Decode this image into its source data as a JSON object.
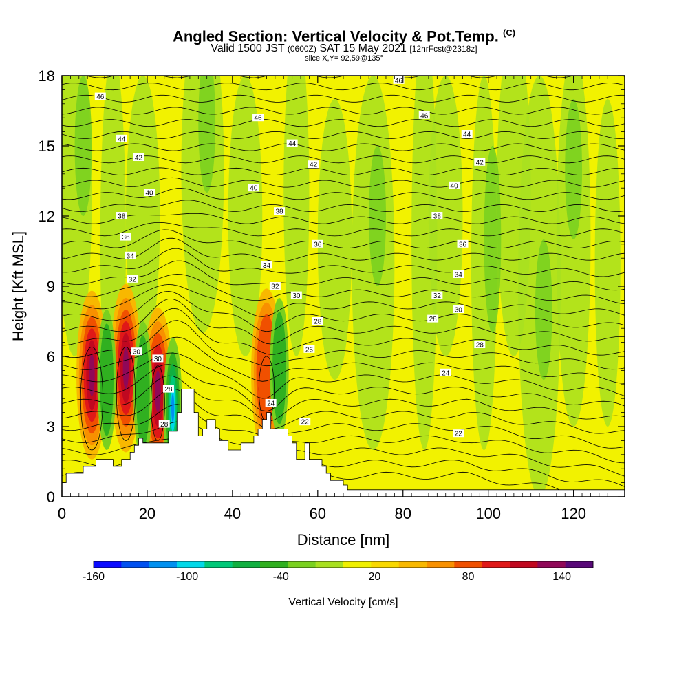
{
  "header": {
    "title": "Angled Section: Vertical Velocity & Pot.Temp.",
    "title_unit": "(C)",
    "subtitle_prefix": "Valid 1500 JST",
    "subtitle_utc": "(0600Z)",
    "subtitle_date": "SAT 15 May 2021",
    "subtitle_fcst": "[12hrFcst@2318z]",
    "slice": "slice X,Y= 92,59@135°"
  },
  "chart_data": {
    "type": "heatmap",
    "xlabel": "Distance [nm]",
    "ylabel": "Height [Kft MSL]",
    "xlim": [
      0,
      132
    ],
    "ylim": [
      0,
      18
    ],
    "x_ticks": [
      "0",
      "20",
      "40",
      "60",
      "80",
      "100",
      "120"
    ],
    "x_tick_values": [
      0,
      20,
      40,
      60,
      80,
      100,
      120
    ],
    "y_ticks": [
      "0",
      "3",
      "6",
      "9",
      "12",
      "15",
      "18"
    ],
    "y_tick_values": [
      0,
      3,
      6,
      9,
      12,
      15,
      18
    ],
    "colorbar": {
      "label": "Vertical Velocity [cm/s]",
      "range": [
        -160,
        160
      ],
      "tick_labels": [
        "-160",
        "-100",
        "-40",
        "20",
        "80",
        "140"
      ],
      "tick_values": [
        -160,
        -100,
        -40,
        20,
        80,
        140
      ],
      "colors": [
        "#0a0aff",
        "#0050f0",
        "#0090f0",
        "#00d8e8",
        "#00c878",
        "#10b040",
        "#30b020",
        "#7ad020",
        "#a8e020",
        "#f0f000",
        "#f8d800",
        "#f8b800",
        "#f89000",
        "#f05000",
        "#e01818",
        "#c00820",
        "#900858",
        "#580878"
      ]
    },
    "background_field": {
      "value": 20,
      "color": "#f2f200"
    },
    "updraft_cores": [
      {
        "x": 7,
        "y": 5.2,
        "max": 140
      },
      {
        "x": 15,
        "y": 5.5,
        "max": 140
      },
      {
        "x": 22.5,
        "y": 4.5,
        "max": 140
      },
      {
        "x": 48,
        "y": 5.3,
        "max": 80
      }
    ],
    "downdraft_cores": [
      {
        "x": 26,
        "y": 3.8,
        "min": -120
      },
      {
        "x": 10.5,
        "y": 5.0,
        "min": -40
      },
      {
        "x": 19,
        "y": 4.5,
        "min": -40
      },
      {
        "x": 51,
        "y": 5.5,
        "min": -40
      }
    ],
    "terrain": {
      "x": [
        0,
        0,
        1,
        1,
        5,
        5,
        8,
        8,
        12,
        12,
        14,
        14,
        16,
        16,
        17,
        17,
        18,
        18,
        19,
        19,
        25,
        25,
        27,
        27,
        28,
        28,
        31,
        31,
        32,
        32,
        33,
        33,
        34,
        34,
        36,
        36,
        37,
        37,
        39,
        39,
        42,
        42,
        45,
        45,
        46,
        46,
        47,
        47,
        48,
        48,
        49,
        49,
        53,
        53,
        54,
        54,
        55,
        55,
        57,
        57,
        58,
        58,
        61,
        61,
        62,
        62,
        63,
        63,
        66,
        66,
        67,
        67,
        68,
        68,
        70,
        70,
        72,
        72,
        132,
        132
      ],
      "y": [
        0,
        0.6,
        0.6,
        1.0,
        1.0,
        1.3,
        1.3,
        1.6,
        1.6,
        1.3,
        1.3,
        1.6,
        1.6,
        1.9,
        1.9,
        2.2,
        2.2,
        2.5,
        2.5,
        2.3,
        2.3,
        2.8,
        2.8,
        3.6,
        3.6,
        4.6,
        4.6,
        3.6,
        3.6,
        2.6,
        2.6,
        2.9,
        2.9,
        3.3,
        3.3,
        2.9,
        2.9,
        2.4,
        2.4,
        2.0,
        2.0,
        2.3,
        2.3,
        2.6,
        2.6,
        2.9,
        2.9,
        3.3,
        3.3,
        3.6,
        3.6,
        2.9,
        2.9,
        2.6,
        2.6,
        2.3,
        2.3,
        1.6,
        1.6,
        2.3,
        2.3,
        1.6,
        1.6,
        1.3,
        1.3,
        1.0,
        1.0,
        0.7,
        0.7,
        0.5,
        0.5,
        0.3,
        0.3,
        0.3,
        0.3,
        0.3,
        0.3,
        0.3,
        0.3,
        0
      ]
    },
    "pot_temp_contours": {
      "unit": "C",
      "labels": [
        {
          "text": "46",
          "x": 9,
          "y": 17.1
        },
        {
          "text": "46",
          "x": 46,
          "y": 16.2
        },
        {
          "text": "46",
          "x": 79,
          "y": 17.8
        },
        {
          "text": "46",
          "x": 85,
          "y": 16.3
        },
        {
          "text": "44",
          "x": 14,
          "y": 15.3
        },
        {
          "text": "44",
          "x": 54,
          "y": 15.1
        },
        {
          "text": "44",
          "x": 95,
          "y": 15.5
        },
        {
          "text": "42",
          "x": 18,
          "y": 14.5
        },
        {
          "text": "42",
          "x": 59,
          "y": 14.2
        },
        {
          "text": "42",
          "x": 98,
          "y": 14.3
        },
        {
          "text": "40",
          "x": 20.5,
          "y": 13.0
        },
        {
          "text": "40",
          "x": 45,
          "y": 13.2
        },
        {
          "text": "40",
          "x": 92,
          "y": 13.3
        },
        {
          "text": "38",
          "x": 14,
          "y": 12.0
        },
        {
          "text": "38",
          "x": 51,
          "y": 12.2
        },
        {
          "text": "38",
          "x": 88,
          "y": 12.0
        },
        {
          "text": "36",
          "x": 15,
          "y": 11.1
        },
        {
          "text": "36",
          "x": 60,
          "y": 10.8
        },
        {
          "text": "36",
          "x": 94,
          "y": 10.8
        },
        {
          "text": "34",
          "x": 16,
          "y": 10.3
        },
        {
          "text": "34",
          "x": 48,
          "y": 9.9
        },
        {
          "text": "34",
          "x": 93,
          "y": 9.5
        },
        {
          "text": "32",
          "x": 16.5,
          "y": 9.3
        },
        {
          "text": "32",
          "x": 50,
          "y": 9.0
        },
        {
          "text": "32",
          "x": 88,
          "y": 8.6
        },
        {
          "text": "30",
          "x": 55,
          "y": 8.6
        },
        {
          "text": "30",
          "x": 93,
          "y": 8.0
        },
        {
          "text": "30",
          "x": 17.5,
          "y": 6.2
        },
        {
          "text": "30",
          "x": 22.5,
          "y": 5.9
        },
        {
          "text": "28",
          "x": 60,
          "y": 7.5
        },
        {
          "text": "28",
          "x": 87,
          "y": 7.6
        },
        {
          "text": "28",
          "x": 98,
          "y": 6.5
        },
        {
          "text": "28",
          "x": 25,
          "y": 4.6
        },
        {
          "text": "28",
          "x": 24,
          "y": 3.1
        },
        {
          "text": "26",
          "x": 58,
          "y": 6.3
        },
        {
          "text": "24",
          "x": 49,
          "y": 4.0
        },
        {
          "text": "24",
          "x": 90,
          "y": 5.3
        },
        {
          "text": "22",
          "x": 57,
          "y": 3.2
        },
        {
          "text": "22",
          "x": 93,
          "y": 2.7
        }
      ]
    }
  }
}
